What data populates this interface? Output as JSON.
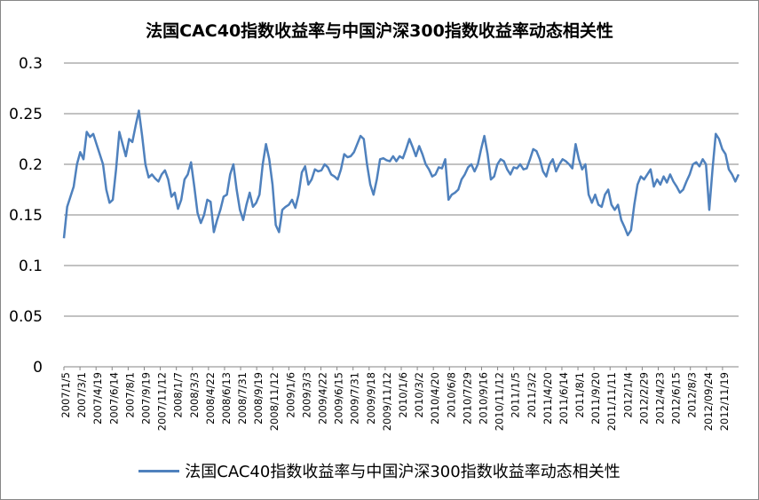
{
  "chart_data": {
    "type": "line",
    "title": "法国CAC40指数收益率与中国沪深300指数收益率动态相关性",
    "xlabel": "",
    "ylabel": "",
    "ylim": [
      0,
      0.3
    ],
    "yticks": [
      "0",
      "0.05",
      "0.1",
      "0.15",
      "0.2",
      "0.25",
      "0.3"
    ],
    "x_tick_labels": [
      "2007/1/5",
      "2007/3/1",
      "2007/4/19",
      "2007/6/14",
      "2007/8/1",
      "2007/9/19",
      "2007/11/12",
      "2008/1/7",
      "2008/3/3",
      "2008/4/22",
      "2008/6/13",
      "2008/7/31",
      "2008/9/19",
      "2008/11/12",
      "2009/1/6",
      "2009/3/3",
      "2009/4/22",
      "2009/6/15",
      "2009/7/31",
      "2009/9/18",
      "2009/11/12",
      "2010/1/6",
      "2010/3/2",
      "2010/4/20",
      "2010/6/8",
      "2010/7/29",
      "2010/9/16",
      "2010/11/12",
      "2011/1/5",
      "2011/3/2",
      "2011/4/20",
      "2011/6/14",
      "2011/8/1",
      "2011/9/20",
      "2011/11/11",
      "2012/1/4",
      "2012/2/29",
      "2012/4/23",
      "2012/6/15",
      "2012/8/3",
      "2012/09/24",
      "2012/11/19"
    ],
    "grid": true,
    "legend_position": "bottom",
    "series": [
      {
        "name": "法国CAC40指数收益率与中国沪深300指数收益率动态相关性",
        "color": "#4f81bd",
        "values": [
          0.127,
          0.158,
          0.168,
          0.178,
          0.2,
          0.212,
          0.205,
          0.232,
          0.227,
          0.23,
          0.22,
          0.21,
          0.2,
          0.175,
          0.162,
          0.165,
          0.195,
          0.232,
          0.22,
          0.208,
          0.225,
          0.222,
          0.238,
          0.253,
          0.228,
          0.2,
          0.187,
          0.19,
          0.186,
          0.183,
          0.19,
          0.194,
          0.185,
          0.168,
          0.172,
          0.156,
          0.165,
          0.185,
          0.19,
          0.202,
          0.178,
          0.152,
          0.142,
          0.15,
          0.165,
          0.163,
          0.133,
          0.145,
          0.155,
          0.168,
          0.17,
          0.19,
          0.2,
          0.175,
          0.155,
          0.145,
          0.16,
          0.172,
          0.158,
          0.162,
          0.17,
          0.2,
          0.22,
          0.205,
          0.18,
          0.14,
          0.133,
          0.155,
          0.158,
          0.16,
          0.165,
          0.157,
          0.17,
          0.192,
          0.198,
          0.18,
          0.185,
          0.195,
          0.193,
          0.194,
          0.2,
          0.197,
          0.19,
          0.188,
          0.185,
          0.195,
          0.21,
          0.207,
          0.208,
          0.212,
          0.22,
          0.228,
          0.225,
          0.2,
          0.18,
          0.17,
          0.185,
          0.205,
          0.206,
          0.204,
          0.203,
          0.208,
          0.203,
          0.208,
          0.206,
          0.215,
          0.225,
          0.217,
          0.208,
          0.218,
          0.21,
          0.2,
          0.195,
          0.188,
          0.19,
          0.197,
          0.196,
          0.205,
          0.165,
          0.17,
          0.172,
          0.175,
          0.185,
          0.19,
          0.197,
          0.2,
          0.193,
          0.2,
          0.215,
          0.228,
          0.21,
          0.185,
          0.188,
          0.2,
          0.205,
          0.203,
          0.195,
          0.19,
          0.197,
          0.196,
          0.2,
          0.195,
          0.196,
          0.205,
          0.215,
          0.213,
          0.205,
          0.193,
          0.188,
          0.2,
          0.205,
          0.193,
          0.2,
          0.205,
          0.203,
          0.2,
          0.196,
          0.22,
          0.205,
          0.195,
          0.2,
          0.17,
          0.162,
          0.17,
          0.16,
          0.158,
          0.17,
          0.175,
          0.16,
          0.155,
          0.16,
          0.145,
          0.138,
          0.13,
          0.135,
          0.16,
          0.18,
          0.188,
          0.185,
          0.19,
          0.195,
          0.178,
          0.185,
          0.18,
          0.188,
          0.182,
          0.19,
          0.183,
          0.178,
          0.172,
          0.175,
          0.183,
          0.19,
          0.2,
          0.202,
          0.198,
          0.205,
          0.2,
          0.155,
          0.195,
          0.23,
          0.225,
          0.215,
          0.21,
          0.195,
          0.19,
          0.183,
          0.19
        ]
      }
    ]
  }
}
